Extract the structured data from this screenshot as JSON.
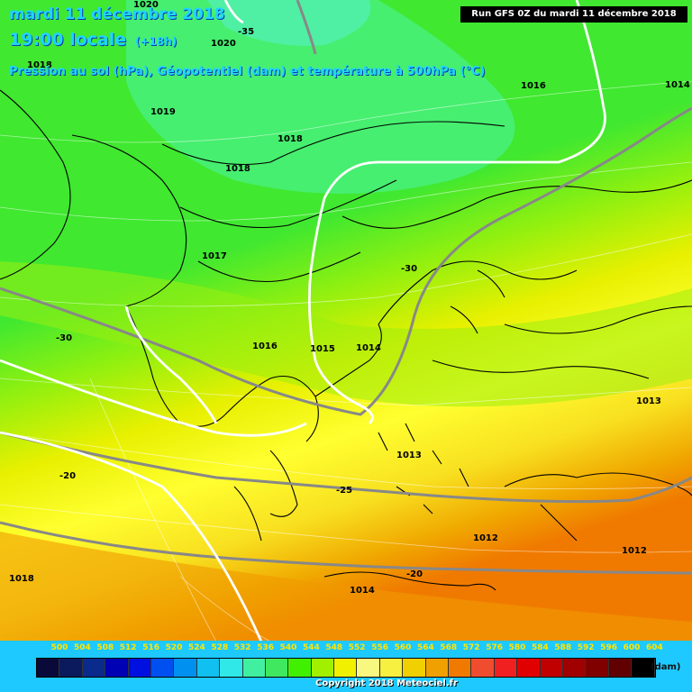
{
  "header": {
    "date": "mardi 11 décembre 2018",
    "time": "19:00 locale",
    "offset": "(+18h)",
    "parameter": "Pression au sol (hPa), Géopotentiel (dam) et température à 500hPa (°C)",
    "run": "Run GFS 0Z du mardi 11 décembre 2018"
  },
  "pressure_labels": [
    "1020",
    "1020",
    "1018",
    "1019",
    "1018",
    "1018",
    "1016",
    "1014",
    "1017",
    "1016",
    "1015",
    "1014",
    "1013",
    "1013",
    "1012",
    "1012",
    "1018",
    "1014"
  ],
  "temperature_labels": [
    "-35",
    "-30",
    "-30",
    "-25",
    "-20",
    "-20"
  ],
  "legend": {
    "values": [
      "500",
      "504",
      "508",
      "512",
      "516",
      "520",
      "524",
      "528",
      "532",
      "536",
      "540",
      "544",
      "548",
      "552",
      "556",
      "560",
      "564",
      "568",
      "572",
      "576",
      "580",
      "584",
      "588",
      "592",
      "596",
      "600",
      "604"
    ],
    "colors": [
      "#0a0a3a",
      "#0a1a5c",
      "#0a2a8c",
      "#0000b4",
      "#0010e0",
      "#0050f0",
      "#0090f0",
      "#10c0f0",
      "#30e8e8",
      "#40f0a0",
      "#40e860",
      "#40f000",
      "#a0f000",
      "#f0f000",
      "#f8f880",
      "#f8f040",
      "#f0d000",
      "#f0a000",
      "#f07a00",
      "#f04c30",
      "#f02020",
      "#e00000",
      "#c00000",
      "#a00000",
      "#800000",
      "#600000",
      "#000000"
    ],
    "unit": "(dam)"
  },
  "copyright": "Copyright 2018 Meteociel.fr"
}
